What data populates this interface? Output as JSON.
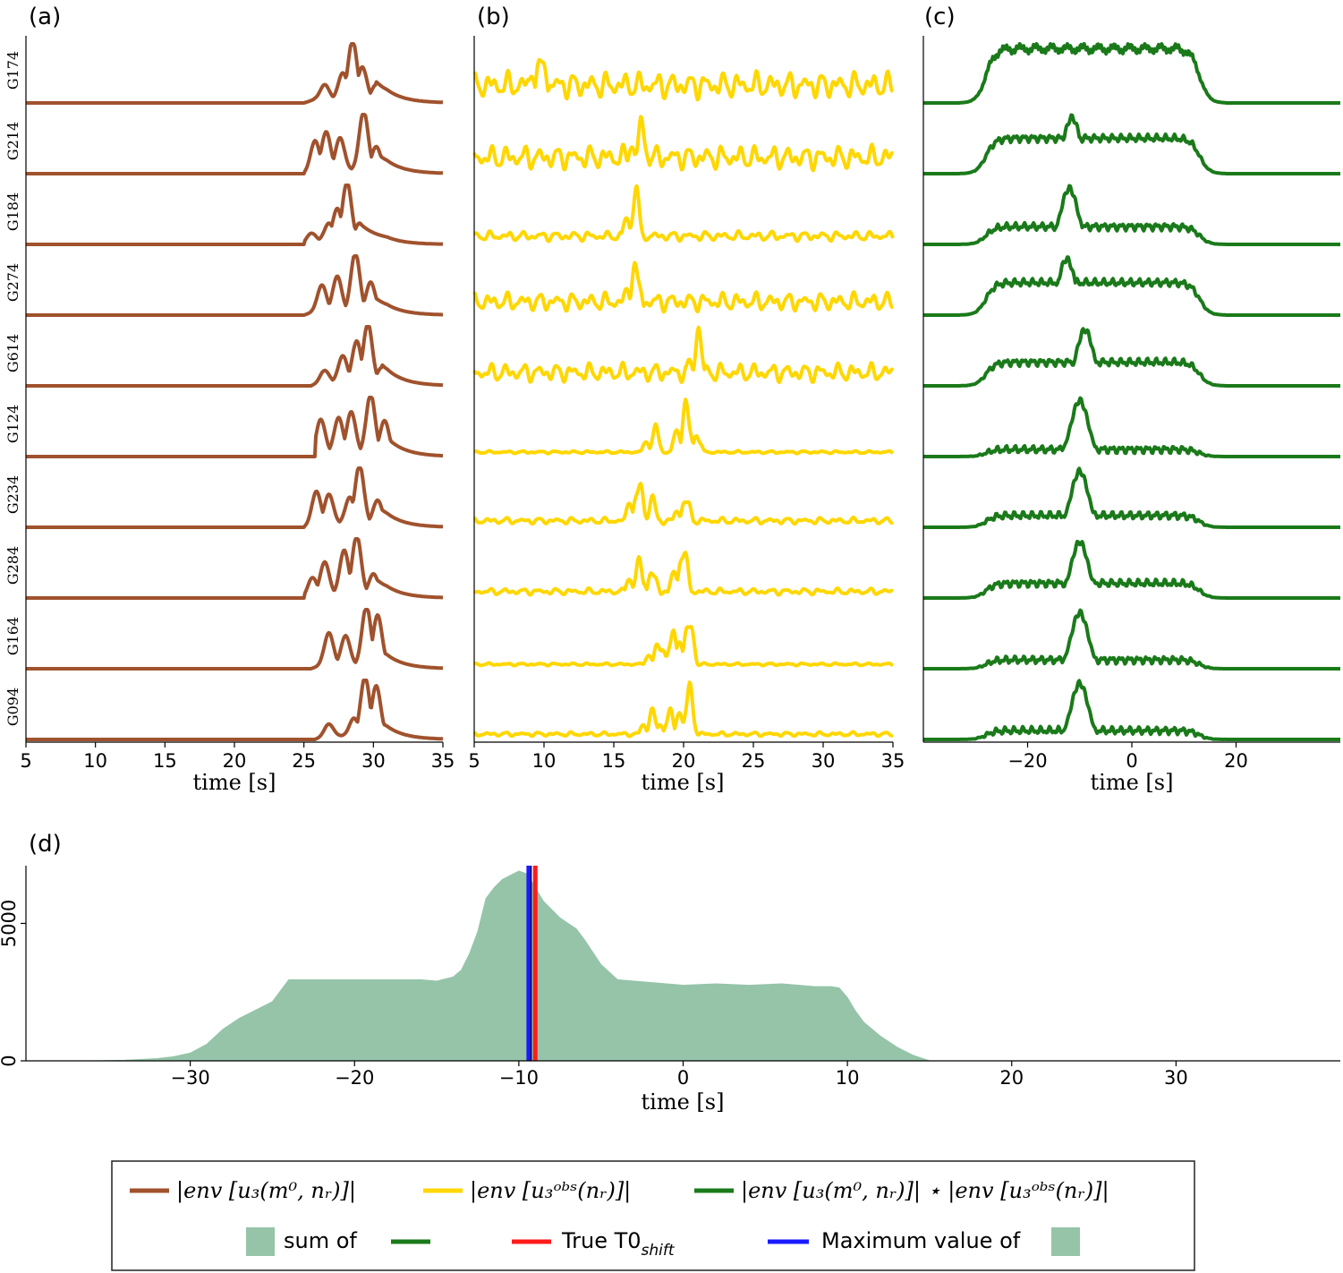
{
  "stations": [
    "G174",
    "G214",
    "G184",
    "G274",
    "G614",
    "G124",
    "G234",
    "G284",
    "G164",
    "G094"
  ],
  "colors": {
    "brown": "#a0522d",
    "yellow": "#ffd700",
    "green": "#1a7a1a",
    "fill": "#95c4a9",
    "red": "#ff1a1a",
    "blue": "#1a1aff"
  },
  "chart_data": [
    {
      "panel": "(a)",
      "type": "line",
      "xlabel": "time [s]",
      "xlim": [
        5,
        35
      ],
      "xticks": [
        "5",
        "10",
        "15",
        "20",
        "25",
        "30",
        "35"
      ],
      "xtick_values": [
        5,
        10,
        15,
        20,
        25,
        30,
        35
      ],
      "color": "brown",
      "series_note": "envelope of synthetic waveform, normalized per station",
      "series": [
        {
          "name": "G174",
          "peaks": [
            [
              26.5,
              0.25
            ],
            [
              27.8,
              0.45
            ],
            [
              28.5,
              1.0
            ],
            [
              29.2,
              0.55
            ],
            [
              30.2,
              0.25
            ]
          ],
          "onset": 25.0
        },
        {
          "name": "G214",
          "peaks": [
            [
              25.8,
              0.5
            ],
            [
              26.6,
              0.65
            ],
            [
              27.6,
              0.55
            ],
            [
              29.3,
              1.0
            ],
            [
              30.2,
              0.4
            ]
          ],
          "onset": 25.0
        },
        {
          "name": "G184",
          "peaks": [
            [
              25.5,
              0.15
            ],
            [
              26.8,
              0.3
            ],
            [
              27.4,
              0.55
            ],
            [
              28.1,
              1.0
            ],
            [
              29.0,
              0.3
            ]
          ],
          "onset": 25.0
        },
        {
          "name": "G274",
          "peaks": [
            [
              26.3,
              0.45
            ],
            [
              27.4,
              0.6
            ],
            [
              28.7,
              1.0
            ],
            [
              29.8,
              0.5
            ]
          ],
          "onset": 25.0
        },
        {
          "name": "G614",
          "peaks": [
            [
              26.5,
              0.2
            ],
            [
              27.8,
              0.45
            ],
            [
              28.8,
              0.7
            ],
            [
              29.6,
              1.0
            ],
            [
              30.6,
              0.25
            ]
          ],
          "onset": 25.5
        },
        {
          "name": "G124",
          "peaks": [
            [
              26.2,
              0.6
            ],
            [
              27.5,
              0.6
            ],
            [
              28.4,
              0.7
            ],
            [
              29.8,
              1.0
            ],
            [
              30.8,
              0.55
            ]
          ],
          "onset": 25.8
        },
        {
          "name": "G234",
          "peaks": [
            [
              25.9,
              0.55
            ],
            [
              26.8,
              0.5
            ],
            [
              28.3,
              0.45
            ],
            [
              29.0,
              1.0
            ],
            [
              30.3,
              0.4
            ]
          ],
          "onset": 25.0
        },
        {
          "name": "G284",
          "peaks": [
            [
              25.6,
              0.3
            ],
            [
              26.5,
              0.55
            ],
            [
              27.9,
              0.75
            ],
            [
              28.8,
              1.0
            ],
            [
              30.0,
              0.35
            ]
          ],
          "onset": 25.0
        },
        {
          "name": "G164",
          "peaks": [
            [
              26.8,
              0.55
            ],
            [
              28.0,
              0.5
            ],
            [
              29.5,
              1.0
            ],
            [
              30.3,
              0.85
            ]
          ],
          "onset": 25.5
        },
        {
          "name": "G094",
          "peaks": [
            [
              26.8,
              0.2
            ],
            [
              28.6,
              0.3
            ],
            [
              29.4,
              1.0
            ],
            [
              30.2,
              0.85
            ]
          ],
          "onset": 25.8
        }
      ]
    },
    {
      "panel": "(b)",
      "type": "line",
      "xlabel": "time [s]",
      "xlim": [
        5,
        35
      ],
      "xticks": [
        "5",
        "10",
        "15",
        "20",
        "25",
        "30",
        "35"
      ],
      "xtick_values": [
        5,
        10,
        15,
        20,
        25,
        30,
        35
      ],
      "color": "yellow",
      "series_note": "envelope of observed waveform, normalized per station",
      "series": [
        {
          "name": "G174",
          "main": [
            [
              9.8,
              1.0
            ]
          ],
          "noise": 0.5
        },
        {
          "name": "G214",
          "main": [
            [
              17.0,
              1.0
            ]
          ],
          "noise": 0.45
        },
        {
          "name": "G184",
          "main": [
            [
              16.6,
              1.0
            ]
          ],
          "noise": 0.18
        },
        {
          "name": "G274",
          "main": [
            [
              16.6,
              1.0
            ]
          ],
          "noise": 0.35
        },
        {
          "name": "G614",
          "main": [
            [
              21.1,
              1.0
            ]
          ],
          "noise": 0.35
        },
        {
          "name": "G124",
          "main": [
            [
              18.0,
              0.55
            ],
            [
              20.2,
              1.0
            ],
            [
              21.0,
              0.4
            ]
          ],
          "noise": 0.05
        },
        {
          "name": "G234",
          "main": [
            [
              16.8,
              0.9
            ],
            [
              17.8,
              0.55
            ],
            [
              20.2,
              0.6
            ]
          ],
          "noise": 0.12
        },
        {
          "name": "G284",
          "main": [
            [
              16.8,
              0.7
            ],
            [
              17.8,
              0.55
            ],
            [
              20.0,
              1.0
            ]
          ],
          "noise": 0.12
        },
        {
          "name": "G164",
          "main": [
            [
              18.2,
              0.5
            ],
            [
              19.2,
              0.7
            ],
            [
              20.4,
              1.0
            ]
          ],
          "noise": 0.05
        },
        {
          "name": "G094",
          "main": [
            [
              17.8,
              0.55
            ],
            [
              19.0,
              0.55
            ],
            [
              20.4,
              1.0
            ]
          ],
          "noise": 0.08
        }
      ]
    },
    {
      "panel": "(c)",
      "type": "line",
      "xlabel": "time [s]",
      "xlim": [
        -40,
        40
      ],
      "xticks": [
        "−20",
        "0",
        "20"
      ],
      "xtick_values": [
        -20,
        0,
        20
      ],
      "color": "green",
      "series_note": "cross-correlation of envelopes, normalized per station",
      "series": [
        {
          "name": "G174",
          "plateau": 0.92,
          "peak": [
            -19,
            1.0
          ]
        },
        {
          "name": "G214",
          "plateau": 0.6,
          "peak": [
            -11.5,
            1.0
          ]
        },
        {
          "name": "G184",
          "plateau": 0.3,
          "peak": [
            -12,
            1.0
          ]
        },
        {
          "name": "G274",
          "plateau": 0.55,
          "peak": [
            -12.5,
            1.0
          ]
        },
        {
          "name": "G614",
          "plateau": 0.4,
          "peak": [
            -9,
            1.0
          ]
        },
        {
          "name": "G124",
          "plateau": 0.12,
          "peak": [
            -10,
            1.0
          ]
        },
        {
          "name": "G234",
          "plateau": 0.2,
          "peak": [
            -10,
            1.0
          ]
        },
        {
          "name": "G284",
          "plateau": 0.25,
          "peak": [
            -10,
            1.0
          ]
        },
        {
          "name": "G164",
          "plateau": 0.15,
          "peak": [
            -10,
            1.0
          ]
        },
        {
          "name": "G094",
          "plateau": 0.15,
          "peak": [
            -10,
            1.0
          ]
        }
      ]
    },
    {
      "panel": "(d)",
      "type": "area",
      "xlabel": "time [s]",
      "xlim": [
        -40,
        40
      ],
      "ylim": [
        0,
        7100
      ],
      "xticks": [
        "−30",
        "−20",
        "−10",
        "0",
        "10",
        "20",
        "30"
      ],
      "xtick_values": [
        -30,
        -20,
        -10,
        0,
        10,
        20,
        30
      ],
      "yticks": [
        "0",
        "5000"
      ],
      "ytick_values": [
        0,
        5000
      ],
      "x": [
        -36,
        -34,
        -32,
        -31,
        -30,
        -29,
        -28,
        -27,
        -26,
        -25,
        -24,
        -22,
        -20,
        -18,
        -16,
        -15,
        -14,
        -13.5,
        -13,
        -12.5,
        -12,
        -11.5,
        -11,
        -10.5,
        -10,
        -9.5,
        -9,
        -8.5,
        -8,
        -7.5,
        -7,
        -6.5,
        -6,
        -5,
        -4,
        -2,
        0,
        2,
        4,
        6,
        8,
        9,
        9.5,
        10,
        10.5,
        11,
        12,
        13,
        14,
        15
      ],
      "y": [
        0,
        20,
        80,
        150,
        280,
        600,
        1150,
        1550,
        1850,
        2150,
        2950,
        2950,
        2950,
        2950,
        2950,
        2900,
        3050,
        3300,
        3900,
        4700,
        5900,
        6300,
        6600,
        6750,
        6900,
        6800,
        6300,
        5800,
        5500,
        5200,
        5000,
        4800,
        4400,
        3500,
        2950,
        2850,
        2750,
        2800,
        2750,
        2800,
        2700,
        2700,
        2650,
        2300,
        1800,
        1400,
        900,
        500,
        200,
        0
      ],
      "true_t0_shift": -9.0,
      "max_value_time": -9.4
    }
  ],
  "legend": {
    "brown_label": "|env [u₃(m⁰, nᵣ)]|",
    "yellow_label": "|env [u₃ᵒᵇˢ(nᵣ)]|",
    "green_label": "|env [u₃(m⁰, nᵣ)]| ⋆ |env [u₃ᵒᵇˢ(nᵣ)]|",
    "fill_label": "sum of",
    "red_label": "True T0",
    "red_sub": "shift",
    "blue_label": "Maximum value of"
  }
}
